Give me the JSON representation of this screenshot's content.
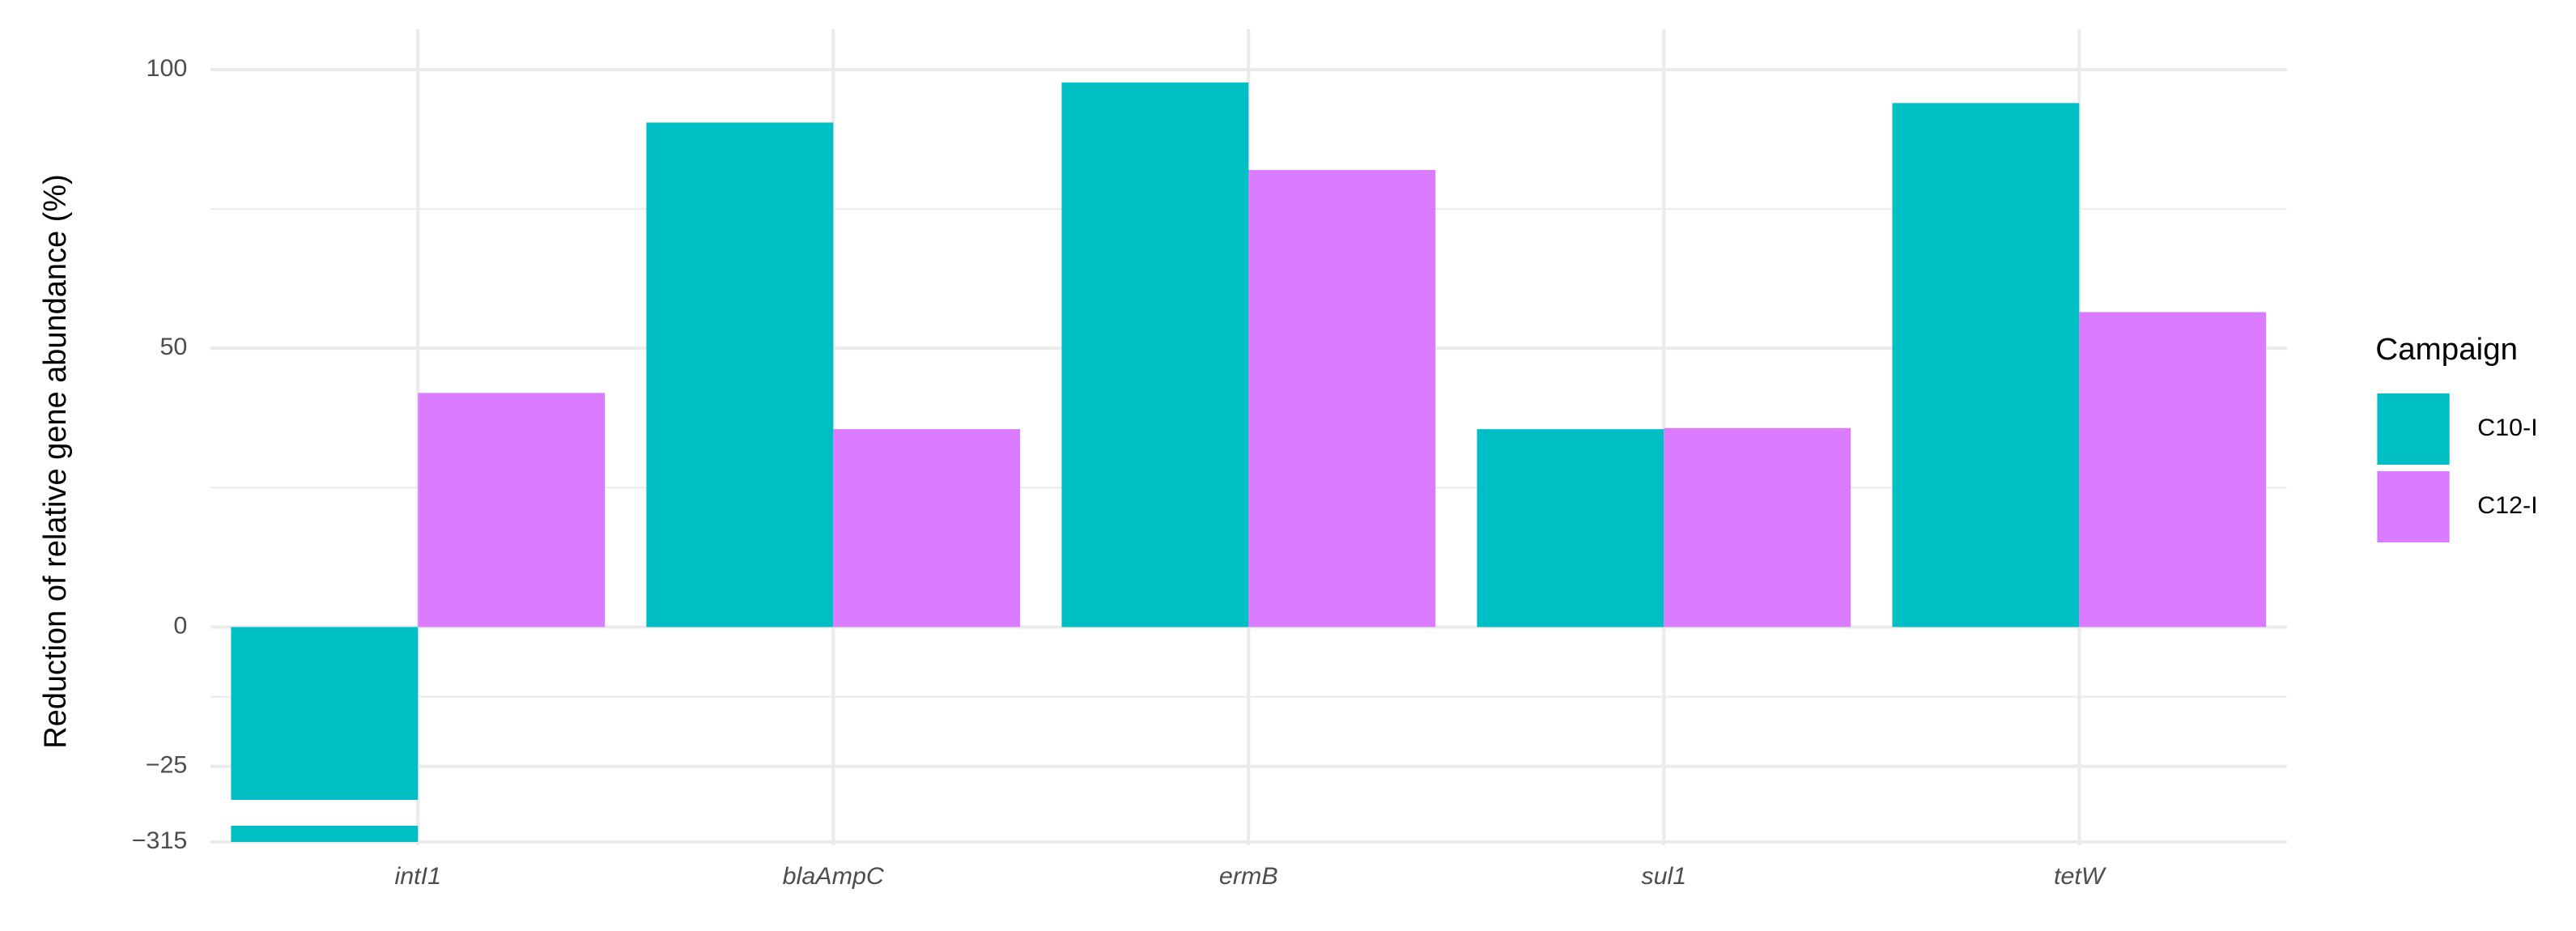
{
  "chart_data": {
    "type": "bar",
    "y_label": "Reduction of relative gene abundance (%)",
    "categories": [
      "intI1",
      "blaAmpC",
      "ermB",
      "sul1",
      "tetW"
    ],
    "series": [
      {
        "name": "C10-I",
        "color": "#00bfc4",
        "values": [
          -315,
          90.5,
          97.7,
          35.5,
          94
        ]
      },
      {
        "name": "C12-I",
        "color": "#db7bff",
        "values": [
          42,
          35.5,
          82,
          35.7,
          56.5
        ]
      }
    ],
    "ylim": [
      -315,
      100
    ],
    "ybreak": [
      -31,
      -312
    ],
    "yticks": [
      {
        "value": -315,
        "label": "−315"
      },
      {
        "value": -25,
        "label": "−25"
      },
      0,
      50,
      100
    ],
    "grid": true,
    "legend_title": "Campaign",
    "legend": "right"
  }
}
